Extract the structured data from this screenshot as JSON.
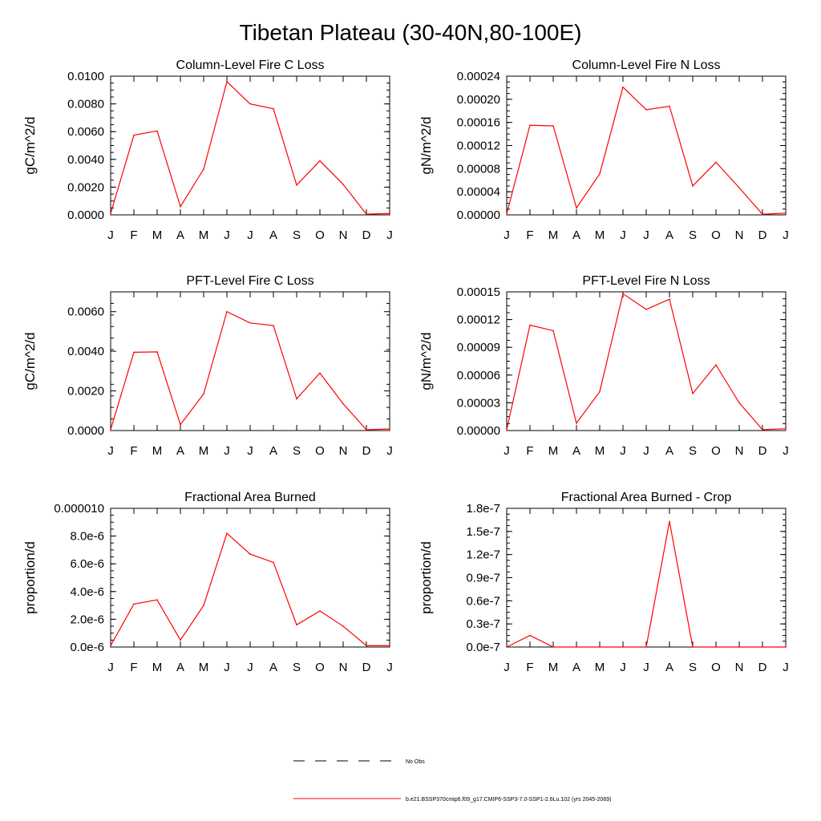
{
  "figure_title": "Tibetan Plateau (30-40N,80-100E)",
  "chart_data": [
    {
      "type": "line",
      "title": "Column-Level Fire C Loss",
      "xlabel": "",
      "ylabel": "gC/m^2/d",
      "categories": [
        "J",
        "F",
        "M",
        "A",
        "M",
        "J",
        "J",
        "A",
        "S",
        "O",
        "N",
        "D",
        "J"
      ],
      "ylim": [
        0,
        0.01
      ],
      "yticks": [
        "0.0000",
        "0.0020",
        "0.0040",
        "0.0060",
        "0.0080",
        "0.0100"
      ],
      "series": [
        {
          "values": [
            0.0001,
            0.00575,
            0.00605,
            0.0006,
            0.0033,
            0.0096,
            0.008,
            0.00765,
            0.00215,
            0.0039,
            0.0022,
            5e-05,
            0.0001
          ]
        }
      ]
    },
    {
      "type": "line",
      "title": "Column-Level Fire N Loss",
      "xlabel": "",
      "ylabel": "gN/m^2/d",
      "categories": [
        "J",
        "F",
        "M",
        "A",
        "M",
        "J",
        "J",
        "A",
        "S",
        "O",
        "N",
        "D",
        "J"
      ],
      "ylim": [
        0,
        0.00024
      ],
      "yticks": [
        "0.00000",
        "0.00004",
        "0.00008",
        "0.00012",
        "0.00016",
        "0.00020",
        "0.00024"
      ],
      "series": [
        {
          "values": [
            2e-06,
            0.000155,
            0.000154,
            1.2e-05,
            7.1e-05,
            0.000221,
            0.000182,
            0.000188,
            5e-05,
            9.1e-05,
            4.7e-05,
            1e-06,
            3e-06
          ]
        }
      ]
    },
    {
      "type": "line",
      "title": "PFT-Level Fire C Loss",
      "xlabel": "",
      "ylabel": "gC/m^2/d",
      "categories": [
        "J",
        "F",
        "M",
        "A",
        "M",
        "J",
        "J",
        "A",
        "S",
        "O",
        "N",
        "D",
        "J"
      ],
      "ylim": [
        0,
        0.007
      ],
      "yticks": [
        "0.0000",
        "0.0020",
        "0.0040",
        "0.0060"
      ],
      "series": [
        {
          "values": [
            5e-05,
            0.00395,
            0.00397,
            0.0003,
            0.00185,
            0.006,
            0.00543,
            0.0053,
            0.0016,
            0.0029,
            0.00135,
            4e-05,
            8e-05
          ]
        }
      ]
    },
    {
      "type": "line",
      "title": "PFT-Level Fire N Loss",
      "xlabel": "",
      "ylabel": "gN/m^2/d",
      "categories": [
        "J",
        "F",
        "M",
        "A",
        "M",
        "J",
        "J",
        "A",
        "S",
        "O",
        "N",
        "D",
        "J"
      ],
      "ylim": [
        0,
        0.00015
      ],
      "yticks": [
        "0.00000",
        "0.00003",
        "0.00006",
        "0.00009",
        "0.00012",
        "0.00015"
      ],
      "series": [
        {
          "values": [
            1e-06,
            0.000114,
            0.000108,
            8e-06,
            4.2e-05,
            0.000148,
            0.000131,
            0.000142,
            4e-05,
            7.1e-05,
            3e-05,
            1e-06,
            2e-06
          ]
        }
      ]
    },
    {
      "type": "line",
      "title": "Fractional Area Burned",
      "xlabel": "",
      "ylabel": "proportion/d",
      "categories": [
        "J",
        "F",
        "M",
        "A",
        "M",
        "J",
        "J",
        "A",
        "S",
        "O",
        "N",
        "D",
        "J"
      ],
      "ylim": [
        0,
        1e-05
      ],
      "yticks": [
        "0.0e-6",
        "2.0e-6",
        "4.0e-6",
        "6.0e-6",
        "8.0e-6",
        "0.000010"
      ],
      "series": [
        {
          "values": [
            1e-07,
            3.1e-06,
            3.4e-06,
            5e-07,
            3e-06,
            8.2e-06,
            6.7e-06,
            6.1e-06,
            1.6e-06,
            2.6e-06,
            1.5e-06,
            1e-07,
            1e-07
          ]
        }
      ]
    },
    {
      "type": "line",
      "title": "Fractional Area Burned - Crop",
      "xlabel": "",
      "ylabel": "proportion/d",
      "categories": [
        "J",
        "F",
        "M",
        "A",
        "M",
        "J",
        "J",
        "A",
        "S",
        "O",
        "N",
        "D",
        "J"
      ],
      "ylim": [
        0,
        1.8e-07
      ],
      "yticks": [
        "0.0e-7",
        "0.3e-7",
        "0.6e-7",
        "0.9e-7",
        "1.2e-7",
        "1.5e-7",
        "1.8e-7"
      ],
      "series": [
        {
          "values": [
            0,
            1.5e-08,
            0,
            0,
            0,
            0,
            0,
            1.63e-07,
            0,
            0,
            0,
            0,
            0
          ]
        }
      ]
    }
  ],
  "legend": [
    {
      "label": "No Obs",
      "style": "dashed",
      "color": "#000000"
    },
    {
      "label": "b.e21.BSSP370cmip6.f09_g17.CMIP6-SSP3-7.0-SSP1-2.6Lu.102 (yrs 2045-2069)",
      "style": "solid",
      "color": "#ff0000"
    }
  ],
  "colors": {
    "series": "#ff0000",
    "axes": "#000000"
  }
}
